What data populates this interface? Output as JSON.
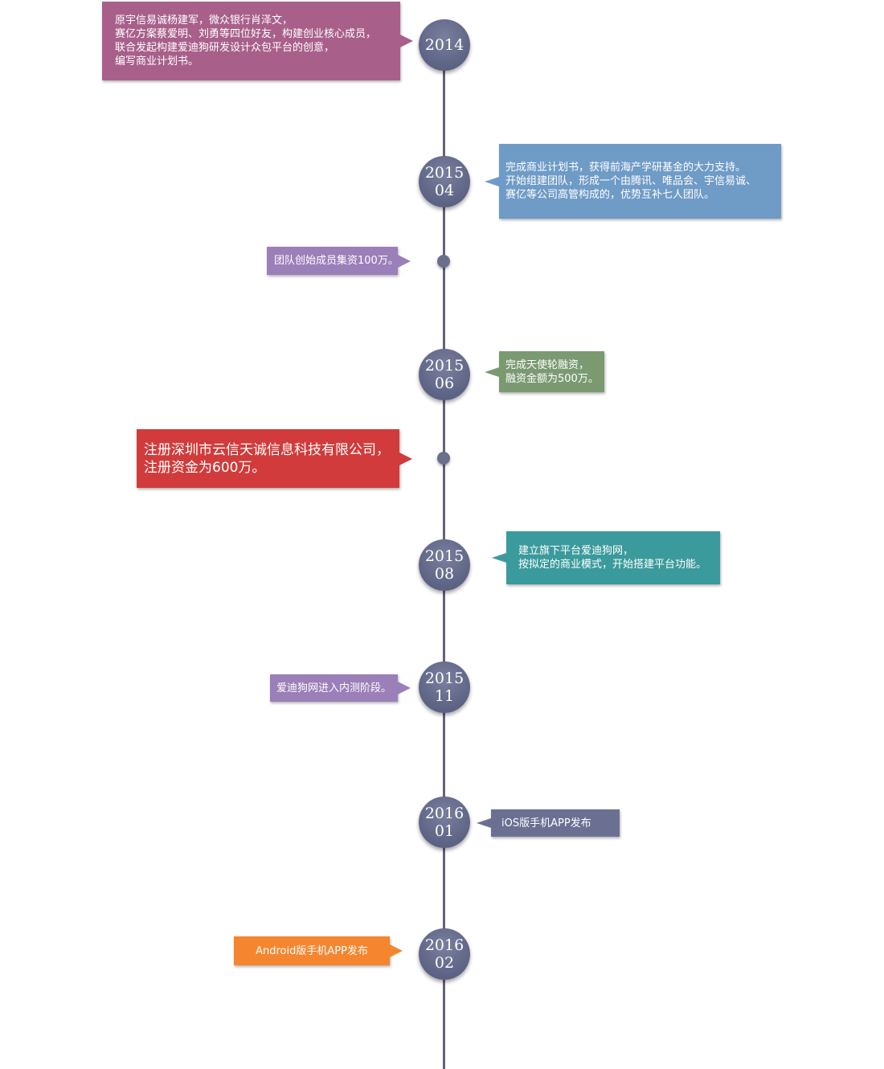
{
  "milestones": [
    {
      "year": "2014",
      "month": "",
      "color": "#a8608a",
      "lines": [
        "原宇信易诚杨建军，微众银行肖泽文，",
        "赛亿方案蔡爱明、刘勇等四位好友，构建创业核心成员，",
        "联合发起构建爱迪狗研发设计众包平台的创意，",
        "编写商业计划书。"
      ]
    },
    {
      "year": "2015",
      "month": "04",
      "color": "#6f9bc7",
      "lines": [
        "完成商业计划书，获得前海产学研基金的大力支持。",
        "开始组建团队，形成一个由腾讯、唯品会、宇信易诚、",
        "赛亿等公司高管构成的，优势互补七人团队。"
      ]
    },
    {
      "year": "",
      "month": "",
      "color": "#9b7fb9",
      "lines": [
        "团队创始成员集资100万。"
      ]
    },
    {
      "year": "2015",
      "month": "06",
      "color": "#7b9a72",
      "lines": [
        "完成天使轮融资，",
        "融资金额为500万。"
      ]
    },
    {
      "year": "",
      "month": "",
      "color": "#d13b3b",
      "lines": [
        "注册深圳市云信天诚信息科技有限公司，",
        "注册资金为600万。"
      ]
    },
    {
      "year": "2015",
      "month": "08",
      "color": "#3b9a9b",
      "lines": [
        "建立旗下平台爱迪狗网，",
        "按拟定的商业模式，开始搭建平台功能。"
      ]
    },
    {
      "year": "2015",
      "month": "11",
      "color": "#9b7fb9",
      "lines": [
        "爱迪狗网进入内测阶段。"
      ]
    },
    {
      "year": "2016",
      "month": "01",
      "color": "#6b7093",
      "lines": [
        "iOS版手机APP发布"
      ]
    },
    {
      "year": "2016",
      "month": "02",
      "color": "#f5862f",
      "lines": [
        "Android版手机APP发布"
      ]
    }
  ]
}
